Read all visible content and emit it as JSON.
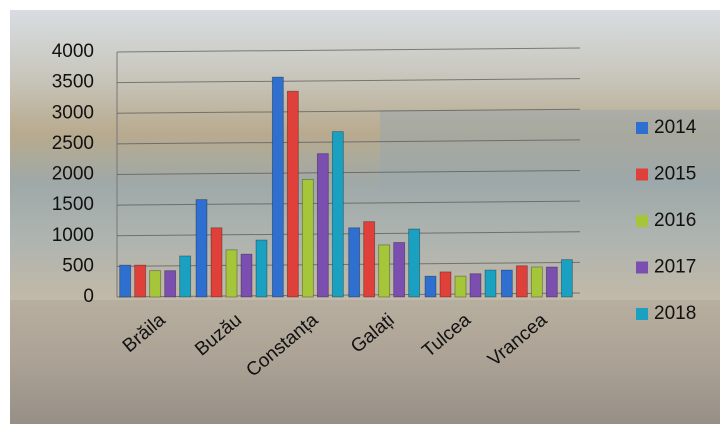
{
  "chart_data": {
    "type": "bar",
    "categories": [
      "Brăila",
      "Buzău",
      "Constanța",
      "Galați",
      "Tulcea",
      "Vrancea"
    ],
    "series": [
      {
        "name": "2014",
        "color": "#2f6fd0",
        "values": [
          520,
          1590,
          3590,
          1130,
          340,
          440
        ]
      },
      {
        "name": "2015",
        "color": "#e0403a",
        "values": [
          520,
          1130,
          3360,
          1230,
          410,
          510
        ]
      },
      {
        "name": "2016",
        "color": "#a6c63a",
        "values": [
          430,
          770,
          1920,
          850,
          340,
          490
        ]
      },
      {
        "name": "2017",
        "color": "#7a4fb0",
        "values": [
          430,
          700,
          2340,
          890,
          380,
          490
        ]
      },
      {
        "name": "2018",
        "color": "#1aa0c0",
        "values": [
          670,
          930,
          2700,
          1110,
          440,
          610
        ]
      }
    ],
    "ylim": [
      0,
      4000
    ],
    "yticks": [
      0,
      500,
      1000,
      1500,
      2000,
      2500,
      3000,
      3500,
      4000
    ],
    "grid": true,
    "legend": "right"
  }
}
